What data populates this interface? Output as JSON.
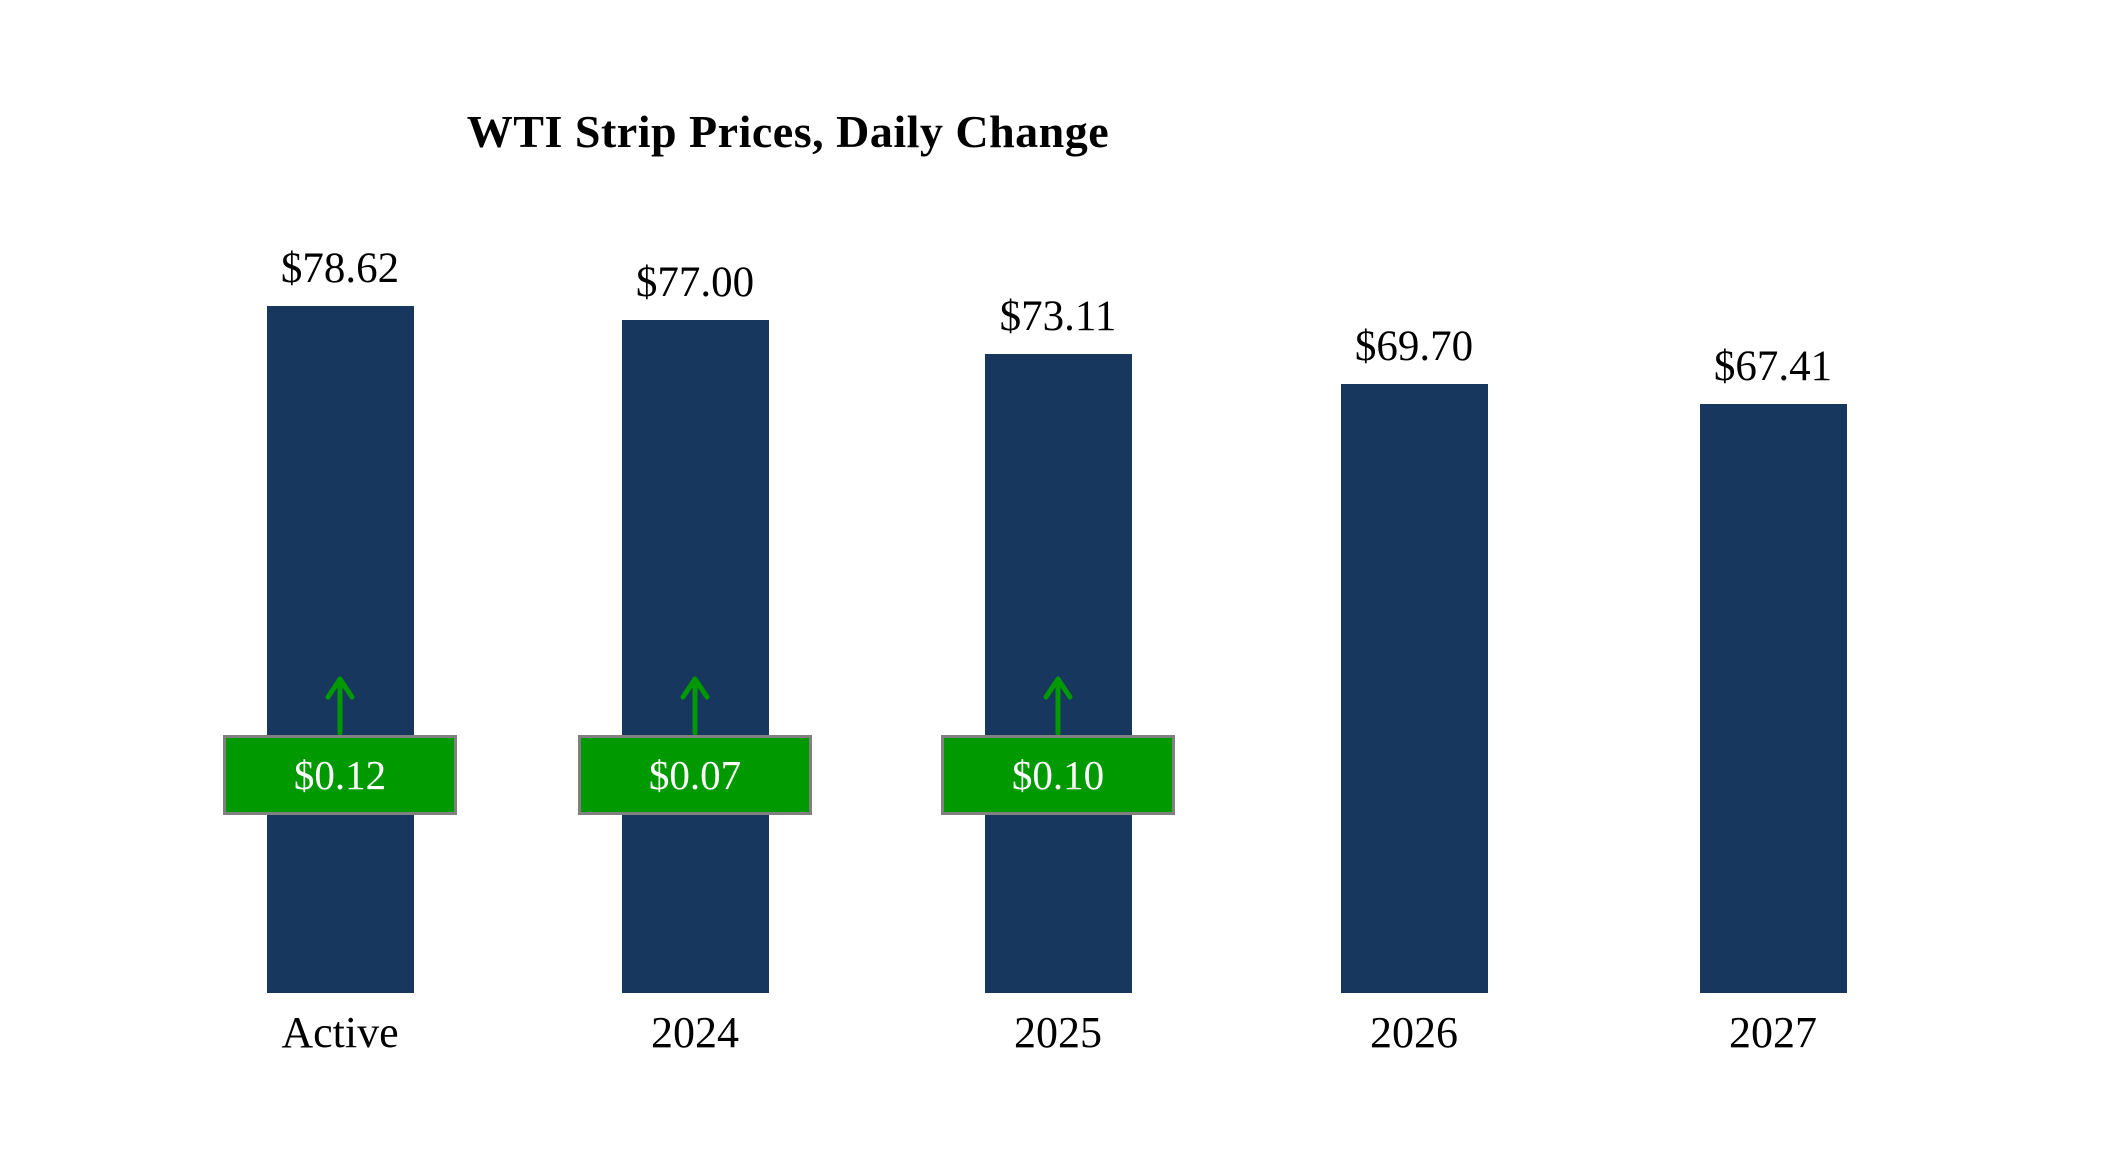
{
  "chart_data": {
    "type": "bar",
    "title": "WTI Strip Prices, Daily Change",
    "categories": [
      "Active",
      "2024",
      "2025",
      "2026",
      "2027"
    ],
    "values": [
      78.62,
      77.0,
      73.11,
      69.7,
      67.41
    ],
    "value_labels": [
      "$78.62",
      "$77.00",
      "$73.11",
      "$69.70",
      "$67.41"
    ],
    "changes": [
      {
        "label": "$0.12",
        "direction": "up"
      },
      {
        "label": "$0.07",
        "direction": "up"
      },
      {
        "label": "$0.10",
        "direction": "up"
      },
      null,
      null
    ],
    "ylim": [
      0,
      80
    ],
    "grid": false,
    "legend": "none",
    "bar_color": "#17375e",
    "change_color": "#009a00",
    "change_border_color": "#808080",
    "change_text_color": "#ffffff",
    "background": "#ffffff"
  }
}
